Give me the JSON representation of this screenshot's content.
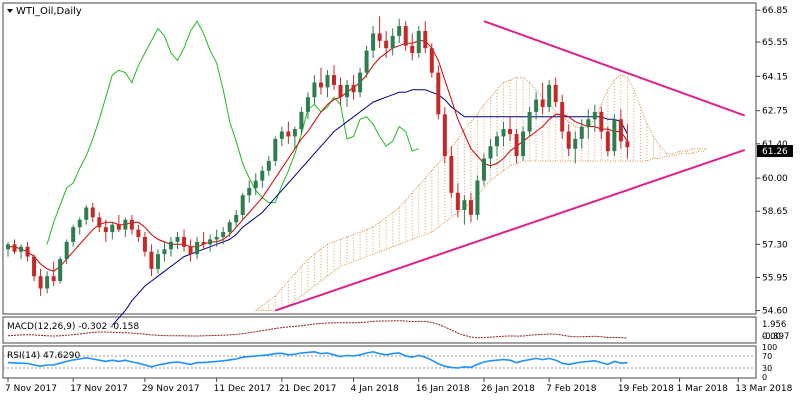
{
  "chart_data": {
    "type": "candlestick",
    "title": "WTI_Oil,Daily",
    "symbol_menu_arrow": "triangle-down-icon",
    "colors": {
      "bull": "#2e7d4f",
      "bear": "#c62828",
      "tenkan": "#d00000",
      "kijun": "#000080",
      "chikou": "#22bb22",
      "cloud": "#d28a3c",
      "trendline": "#e0208c",
      "macd": "#8b1a1a",
      "rsi": "#1e90ff",
      "price_badge_bg": "#000000"
    },
    "price_axis": {
      "ylim": [
        54.5,
        67.1
      ],
      "ticks": [
        "66.85",
        "65.55",
        "64.15",
        "62.75",
        "61.40",
        "60.00",
        "58.65",
        "57.30",
        "55.95",
        "54.60"
      ]
    },
    "current_price": "61.26",
    "x_axis_labels": [
      "7 Nov 2017",
      "17 Nov 2017",
      "29 Nov 2017",
      "11 Dec 2017",
      "21 Dec 2017",
      "4 Jan 2018",
      "16 Jan 2018",
      "26 Jan 2018",
      "7 Feb 2018",
      "19 Feb 2018",
      "1 Mar 2018",
      "13 Mar 2018"
    ],
    "candles": [
      [
        57.1,
        57.4,
        56.8,
        57.3
      ],
      [
        57.3,
        57.5,
        56.9,
        57.0
      ],
      [
        57.0,
        57.3,
        56.7,
        57.2
      ],
      [
        57.2,
        57.4,
        56.6,
        56.8
      ],
      [
        56.8,
        56.9,
        55.8,
        56.0
      ],
      [
        56.0,
        56.3,
        55.2,
        55.5
      ],
      [
        55.5,
        56.2,
        55.3,
        56.0
      ],
      [
        56.0,
        56.6,
        55.6,
        55.8
      ],
      [
        55.8,
        56.8,
        55.7,
        56.7
      ],
      [
        56.7,
        57.5,
        56.5,
        57.4
      ],
      [
        57.4,
        58.1,
        57.2,
        58.0
      ],
      [
        58.0,
        58.4,
        57.7,
        58.3
      ],
      [
        58.3,
        58.9,
        58.1,
        58.8
      ],
      [
        58.8,
        59.0,
        58.2,
        58.4
      ],
      [
        58.4,
        58.6,
        57.8,
        58.0
      ],
      [
        58.0,
        58.3,
        57.4,
        57.8
      ],
      [
        57.8,
        58.2,
        57.5,
        58.1
      ],
      [
        58.1,
        58.5,
        57.8,
        57.9
      ],
      [
        57.9,
        58.4,
        57.6,
        58.3
      ],
      [
        58.3,
        58.5,
        57.7,
        57.9
      ],
      [
        57.9,
        58.1,
        57.4,
        57.6
      ],
      [
        57.6,
        57.8,
        56.8,
        57.0
      ],
      [
        57.0,
        57.3,
        56.0,
        56.3
      ],
      [
        56.3,
        57.1,
        56.1,
        56.9
      ],
      [
        56.9,
        57.4,
        56.6,
        57.1
      ],
      [
        57.1,
        57.6,
        56.8,
        57.4
      ],
      [
        57.4,
        57.8,
        57.1,
        57.6
      ],
      [
        57.6,
        57.9,
        57.0,
        57.2
      ],
      [
        57.2,
        57.5,
        56.6,
        56.9
      ],
      [
        56.9,
        57.6,
        56.7,
        57.4
      ],
      [
        57.4,
        57.8,
        57.1,
        57.3
      ],
      [
        57.3,
        57.7,
        57.0,
        57.5
      ],
      [
        57.5,
        57.9,
        57.2,
        57.6
      ],
      [
        57.6,
        58.0,
        57.3,
        57.8
      ],
      [
        57.8,
        58.3,
        57.6,
        58.2
      ],
      [
        58.2,
        58.7,
        58.0,
        58.5
      ],
      [
        58.5,
        59.4,
        58.3,
        59.3
      ],
      [
        59.3,
        59.9,
        59.0,
        59.6
      ],
      [
        59.6,
        60.2,
        59.3,
        59.9
      ],
      [
        59.9,
        60.5,
        59.6,
        60.3
      ],
      [
        60.3,
        60.9,
        60.1,
        60.7
      ],
      [
        60.7,
        61.7,
        60.5,
        61.6
      ],
      [
        61.6,
        62.1,
        61.3,
        61.9
      ],
      [
        61.9,
        62.3,
        61.4,
        61.7
      ],
      [
        61.7,
        62.1,
        61.2,
        62.0
      ],
      [
        62.0,
        62.9,
        61.8,
        62.7
      ],
      [
        62.7,
        63.5,
        62.4,
        63.3
      ],
      [
        63.3,
        64.2,
        63.0,
        63.9
      ],
      [
        63.9,
        64.5,
        63.4,
        63.7
      ],
      [
        63.7,
        64.4,
        63.3,
        64.2
      ],
      [
        64.2,
        64.6,
        63.6,
        63.8
      ],
      [
        63.8,
        64.1,
        63.0,
        63.3
      ],
      [
        63.3,
        64.0,
        62.9,
        63.8
      ],
      [
        63.8,
        64.2,
        63.2,
        63.5
      ],
      [
        63.5,
        64.5,
        63.3,
        64.3
      ],
      [
        64.3,
        65.4,
        64.1,
        65.2
      ],
      [
        65.2,
        66.2,
        64.9,
        65.9
      ],
      [
        65.9,
        66.6,
        65.3,
        65.6
      ],
      [
        65.6,
        66.0,
        64.9,
        65.3
      ],
      [
        65.3,
        66.1,
        65.0,
        65.8
      ],
      [
        65.8,
        66.5,
        65.5,
        66.2
      ],
      [
        66.2,
        66.4,
        65.2,
        65.4
      ],
      [
        65.4,
        65.9,
        64.8,
        65.1
      ],
      [
        65.1,
        66.2,
        64.9,
        66.0
      ],
      [
        66.0,
        66.4,
        65.1,
        65.3
      ],
      [
        65.3,
        65.5,
        64.1,
        64.3
      ],
      [
        64.3,
        64.6,
        62.4,
        62.6
      ],
      [
        62.6,
        62.9,
        60.6,
        60.9
      ],
      [
        60.9,
        61.3,
        59.2,
        59.4
      ],
      [
        59.4,
        59.8,
        58.4,
        58.7
      ],
      [
        58.7,
        59.3,
        58.1,
        59.1
      ],
      [
        59.1,
        59.4,
        58.2,
        58.5
      ],
      [
        58.5,
        60.1,
        58.3,
        59.9
      ],
      [
        59.9,
        61.0,
        59.7,
        60.8
      ],
      [
        60.8,
        61.6,
        60.4,
        61.3
      ],
      [
        61.3,
        61.9,
        60.9,
        61.7
      ],
      [
        61.7,
        62.3,
        61.3,
        62.0
      ],
      [
        62.0,
        62.5,
        61.5,
        61.8
      ],
      [
        61.8,
        62.0,
        60.6,
        60.9
      ],
      [
        60.9,
        62.1,
        60.7,
        61.9
      ],
      [
        61.9,
        62.9,
        61.7,
        62.7
      ],
      [
        62.7,
        63.5,
        62.4,
        63.2
      ],
      [
        63.2,
        63.9,
        62.6,
        62.9
      ],
      [
        62.9,
        64.0,
        62.7,
        63.8
      ],
      [
        63.8,
        64.1,
        62.9,
        63.1
      ],
      [
        63.1,
        63.4,
        61.6,
        61.9
      ],
      [
        61.9,
        62.2,
        60.9,
        61.2
      ],
      [
        61.2,
        61.9,
        60.6,
        61.6
      ],
      [
        61.6,
        62.4,
        61.2,
        62.1
      ],
      [
        62.1,
        62.8,
        61.6,
        62.4
      ],
      [
        62.4,
        63.0,
        61.9,
        62.7
      ],
      [
        62.7,
        62.9,
        61.6,
        61.9
      ],
      [
        61.9,
        62.1,
        60.9,
        61.1
      ],
      [
        61.1,
        62.6,
        60.9,
        62.4
      ],
      [
        62.4,
        62.8,
        61.2,
        61.5
      ],
      [
        61.5,
        62.2,
        60.8,
        61.26
      ]
    ],
    "tenkan": [
      57.2,
      57.2,
      57.1,
      57.0,
      56.8,
      56.5,
      56.3,
      56.2,
      56.4,
      56.7,
      57.0,
      57.3,
      57.6,
      57.9,
      58.1,
      58.2,
      58.2,
      58.1,
      58.1,
      58.2,
      58.2,
      58.0,
      57.7,
      57.5,
      57.4,
      57.3,
      57.3,
      57.3,
      57.2,
      57.2,
      57.3,
      57.4,
      57.4,
      57.5,
      57.7,
      58.0,
      58.3,
      58.6,
      58.9,
      59.2,
      59.6,
      60.0,
      60.4,
      60.8,
      61.2,
      61.6,
      61.9,
      62.3,
      62.7,
      63.0,
      63.2,
      63.3,
      63.5,
      63.7,
      63.9,
      64.2,
      64.6,
      64.9,
      65.1,
      65.3,
      65.4,
      65.5,
      65.5,
      65.6,
      65.6,
      65.3,
      64.8,
      64.0,
      63.2,
      62.4,
      61.8,
      61.2,
      60.9,
      60.6,
      60.5,
      60.6,
      60.8,
      61.1,
      61.3,
      61.5,
      61.7,
      61.9,
      62.1,
      62.4,
      62.6,
      62.6,
      62.5,
      62.3,
      62.2,
      62.1,
      62.1,
      62.0,
      62.0,
      61.9,
      61.9,
      61.5
    ],
    "kijun": [
      null,
      null,
      null,
      null,
      null,
      null,
      null,
      null,
      null,
      null,
      null,
      null,
      null,
      null,
      null,
      null,
      54.0,
      54.3,
      54.6,
      55.0,
      55.3,
      55.6,
      55.8,
      56.0,
      56.2,
      56.4,
      56.6,
      56.8,
      56.9,
      57.0,
      57.1,
      57.2,
      57.3,
      57.4,
      57.5,
      57.7,
      58.0,
      58.2,
      58.4,
      58.6,
      58.9,
      59.2,
      59.5,
      59.8,
      60.1,
      60.4,
      60.7,
      61.0,
      61.3,
      61.6,
      61.9,
      62.1,
      62.3,
      62.5,
      62.7,
      62.9,
      63.1,
      63.2,
      63.3,
      63.4,
      63.5,
      63.5,
      63.6,
      63.6,
      63.6,
      63.5,
      63.4,
      63.2,
      62.9,
      62.7,
      62.5,
      62.5,
      62.5,
      62.5,
      62.5,
      62.5,
      62.5,
      62.5,
      62.5,
      62.5,
      62.5,
      62.5,
      62.5,
      62.5,
      62.5,
      62.5,
      62.5,
      62.5,
      62.5,
      62.5,
      62.5,
      62.5,
      62.4,
      62.4,
      62.3,
      61.8
    ],
    "chikou": [
      null,
      null,
      null,
      null,
      null,
      null,
      57.3,
      58.2,
      58.9,
      59.6,
      59.8,
      60.4,
      60.9,
      61.6,
      62.4,
      63.3,
      64.2,
      64.4,
      64.3,
      63.9,
      64.6,
      65.1,
      65.6,
      66.1,
      65.8,
      65.1,
      64.8,
      65.3,
      66.0,
      66.4,
      65.9,
      65.2,
      64.7,
      63.6,
      62.3,
      61.5,
      60.6,
      60.0,
      59.5,
      59.2,
      59.0,
      59.0,
      59.7,
      60.3,
      61.0,
      61.8,
      62.8,
      63.0,
      62.7,
      62.9,
      63.3,
      63.0,
      61.6,
      61.7,
      62.4,
      62.5,
      62.2,
      61.7,
      61.3,
      61.5,
      62.1,
      61.9,
      61.1,
      61.2
    ],
    "cloud_top": [
      null,
      null,
      null,
      null,
      null,
      null,
      null,
      null,
      null,
      null,
      null,
      null,
      null,
      null,
      null,
      null,
      null,
      null,
      null,
      null,
      null,
      null,
      null,
      null,
      null,
      null,
      null,
      null,
      null,
      null,
      null,
      null,
      null,
      null,
      null,
      null,
      null,
      null,
      54.6,
      54.8,
      55.0,
      55.2,
      55.5,
      55.8,
      56.1,
      56.4,
      56.7,
      56.9,
      57.1,
      57.3,
      57.4,
      57.5,
      57.6,
      57.7,
      57.8,
      57.9,
      58.0,
      58.2,
      58.4,
      58.6,
      58.8,
      59.1,
      59.4,
      59.7,
      60.0,
      60.3,
      60.6,
      60.9,
      61.2,
      61.6,
      62.0,
      62.3,
      62.6,
      63.0,
      63.3,
      63.6,
      63.9,
      64.0,
      64.1,
      64.1,
      63.9,
      63.6,
      63.3,
      63.0,
      62.7,
      62.5,
      62.3,
      62.1,
      62.0,
      62.1,
      62.4,
      63.0,
      63.6,
      64.0,
      64.2,
      64.1,
      63.6,
      62.9,
      62.2,
      61.7,
      61.3,
      61.0,
      61.0,
      61.1,
      61.1,
      61.2,
      61.2,
      61.2
    ],
    "cloud_bottom": [
      null,
      null,
      null,
      null,
      null,
      null,
      null,
      null,
      null,
      null,
      null,
      null,
      null,
      null,
      null,
      null,
      null,
      null,
      null,
      null,
      null,
      null,
      null,
      null,
      null,
      null,
      null,
      null,
      null,
      null,
      null,
      null,
      null,
      null,
      null,
      null,
      null,
      null,
      54.6,
      54.6,
      54.6,
      54.6,
      54.7,
      54.8,
      55.0,
      55.2,
      55.4,
      55.6,
      55.8,
      56.0,
      56.2,
      56.4,
      56.5,
      56.6,
      56.7,
      56.8,
      56.9,
      57.0,
      57.1,
      57.2,
      57.3,
      57.4,
      57.5,
      57.6,
      57.7,
      57.8,
      58.0,
      58.2,
      58.4,
      58.6,
      58.8,
      59.0,
      59.3,
      59.6,
      59.9,
      60.1,
      60.3,
      60.5,
      60.6,
      60.7,
      60.7,
      60.7,
      60.7,
      60.7,
      60.7,
      60.7,
      60.7,
      60.7,
      60.7,
      60.7,
      60.7,
      60.7,
      60.7,
      60.7,
      60.7,
      60.7,
      60.7,
      60.7,
      60.7,
      60.8,
      60.8,
      60.9,
      60.9,
      61.0,
      61.0,
      61.0,
      61.1,
      61.1
    ],
    "trendlines": [
      {
        "name": "upper",
        "from": [
          73,
          66.4
        ],
        "to": [
          113,
          62.55
        ]
      },
      {
        "name": "lower",
        "from": [
          41,
          54.6
        ],
        "to": [
          113,
          61.15
        ]
      }
    ],
    "macd": {
      "label": "MACD(12,26,9) -0.302 -0.158",
      "ylim": [
        -0.5,
        2.2
      ],
      "ticks": [
        "1.956",
        "0.00",
        "-0.897"
      ],
      "values": [
        0.2,
        0.25,
        0.3,
        0.32,
        0.3,
        0.25,
        0.2,
        0.18,
        0.2,
        0.25,
        0.32,
        0.4,
        0.5,
        0.58,
        0.62,
        0.62,
        0.6,
        0.56,
        0.53,
        0.5,
        0.45,
        0.38,
        0.3,
        0.25,
        0.22,
        0.2,
        0.2,
        0.2,
        0.18,
        0.18,
        0.2,
        0.22,
        0.24,
        0.27,
        0.3,
        0.36,
        0.45,
        0.55,
        0.66,
        0.78,
        0.9,
        1.02,
        1.12,
        1.2,
        1.26,
        1.33,
        1.42,
        1.52,
        1.58,
        1.64,
        1.66,
        1.66,
        1.66,
        1.66,
        1.68,
        1.74,
        1.82,
        1.86,
        1.86,
        1.87,
        1.9,
        1.86,
        1.8,
        1.82,
        1.8,
        1.7,
        1.5,
        1.2,
        0.85,
        0.5,
        0.25,
        0.05,
        -0.02,
        0.0,
        0.05,
        0.1,
        0.15,
        0.18,
        0.16,
        0.18,
        0.25,
        0.32,
        0.35,
        0.4,
        0.38,
        0.28,
        0.15,
        0.1,
        0.1,
        0.12,
        0.14,
        0.1,
        0.0,
        0.02,
        0.0,
        -0.05
      ]
    },
    "rsi": {
      "label": "RSI(14) 47.6290",
      "ylim": [
        0,
        100
      ],
      "ticks": [
        "100",
        "70",
        "30",
        "0"
      ],
      "values": [
        48,
        47,
        46,
        45,
        40,
        36,
        40,
        40,
        46,
        52,
        57,
        60,
        64,
        60,
        56,
        52,
        56,
        52,
        56,
        50,
        46,
        40,
        34,
        40,
        44,
        48,
        50,
        46,
        42,
        48,
        48,
        50,
        52,
        54,
        57,
        60,
        66,
        68,
        70,
        72,
        74,
        78,
        79,
        74,
        76,
        80,
        82,
        84,
        78,
        80,
        74,
        68,
        72,
        70,
        74,
        80,
        84,
        78,
        74,
        78,
        80,
        70,
        66,
        72,
        66,
        56,
        44,
        36,
        32,
        30,
        34,
        32,
        42,
        50,
        54,
        56,
        58,
        56,
        48,
        54,
        58,
        62,
        58,
        62,
        56,
        46,
        42,
        46,
        50,
        52,
        54,
        48,
        42,
        52,
        46,
        47.6
      ]
    }
  }
}
